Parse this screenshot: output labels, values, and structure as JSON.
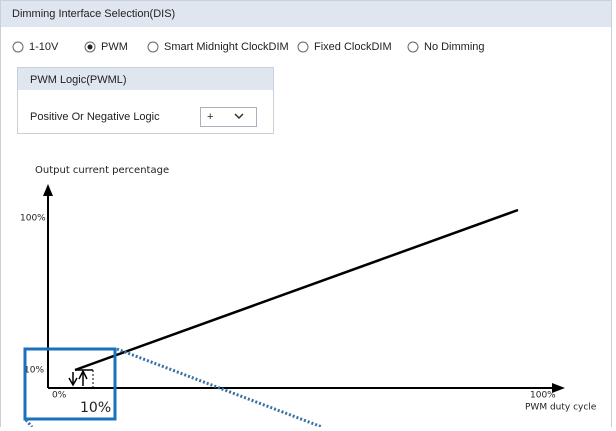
{
  "panel": {
    "title": "Dimming Interface Selection(DIS)",
    "options": [
      {
        "label": "1-10V",
        "selected": false
      },
      {
        "label": "PWM",
        "selected": true
      },
      {
        "label": "Smart Midnight ClockDIM",
        "selected": false
      },
      {
        "label": "Fixed ClockDIM",
        "selected": false
      },
      {
        "label": "No Dimming",
        "selected": false
      }
    ],
    "subpanel": {
      "title": "PWM Logic(PWML)",
      "field_label": "Positive Or Negative Logic",
      "field_value": "+"
    }
  },
  "diagram": {
    "y_axis_label": "Output current percentage",
    "y_top_label": "100%",
    "y_low_label": "10%",
    "x_origin_label": "0%",
    "x_end_label": "100%",
    "x_axis_label": "PWM duty cycle",
    "zoom_label": "10%"
  }
}
